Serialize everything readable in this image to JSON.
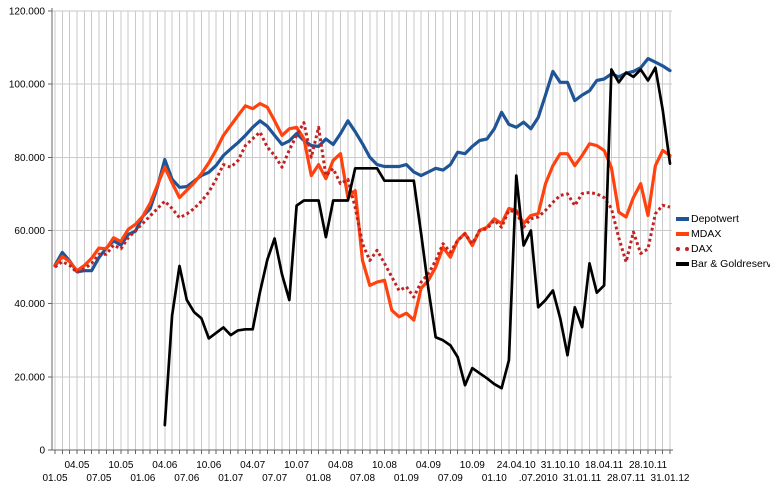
{
  "window": {
    "background": "#ffffff"
  },
  "legend": {
    "position": "right",
    "items": [
      "Depotwert",
      "MDAX",
      "DAX",
      "Bar & Goldreserven"
    ]
  },
  "chart_data": {
    "type": "line",
    "title": "",
    "xlabel": "",
    "ylabel": "",
    "x_unit": "month",
    "x_start": "01.05",
    "x_end": "31.01.12",
    "n_points": 85,
    "ylim": [
      0,
      120000
    ],
    "grid": true,
    "grid_color": "#c9c9c9",
    "axis_color": "#666666",
    "y_ticks": [
      {
        "value": 0,
        "label": "0"
      },
      {
        "value": 20000,
        "label": "20.000"
      },
      {
        "value": 40000,
        "label": "40.000"
      },
      {
        "value": 60000,
        "label": "60.000"
      },
      {
        "value": 80000,
        "label": "80.000"
      },
      {
        "value": 100000,
        "label": "100.000"
      },
      {
        "value": 120000,
        "label": "120.000"
      }
    ],
    "x_ticks_upper": [
      {
        "m": 3,
        "label": "04.05"
      },
      {
        "m": 9,
        "label": "10.05"
      },
      {
        "m": 15,
        "label": "04.06"
      },
      {
        "m": 21,
        "label": "10.06"
      },
      {
        "m": 27,
        "label": "04.07"
      },
      {
        "m": 33,
        "label": "10.07"
      },
      {
        "m": 39,
        "label": "04.08"
      },
      {
        "m": 45,
        "label": "10.08"
      },
      {
        "m": 51,
        "label": "04.09"
      },
      {
        "m": 57,
        "label": "10.09"
      },
      {
        "m": 63,
        "label": "24.04.10"
      },
      {
        "m": 69,
        "label": "31.10.10"
      },
      {
        "m": 75,
        "label": "18.04.11"
      },
      {
        "m": 81,
        "label": "28.10.11"
      }
    ],
    "x_ticks_lower": [
      {
        "m": 0,
        "label": "01.05"
      },
      {
        "m": 6,
        "label": "07.05"
      },
      {
        "m": 12,
        "label": "01.06"
      },
      {
        "m": 18,
        "label": "07.06"
      },
      {
        "m": 24,
        "label": "01.07"
      },
      {
        "m": 30,
        "label": "07.07"
      },
      {
        "m": 36,
        "label": "01.08"
      },
      {
        "m": 42,
        "label": "07.08"
      },
      {
        "m": 48,
        "label": "01.09"
      },
      {
        "m": 54,
        "label": "07.09"
      },
      {
        "m": 60,
        "label": "01.10"
      },
      {
        "m": 66,
        "label": ".07.2010"
      },
      {
        "m": 72,
        "label": "31.01.11"
      },
      {
        "m": 78,
        "label": "28.07.11"
      },
      {
        "m": 84,
        "label": "31.01.12"
      }
    ],
    "series": [
      {
        "name": "Depotwert",
        "color": "#1F5596",
        "dash": "solid",
        "width": 3.2,
        "values": [
          50500,
          54000,
          51700,
          48700,
          49000,
          49000,
          52600,
          55200,
          57200,
          56000,
          58900,
          59800,
          63900,
          66000,
          72000,
          79400,
          74000,
          71800,
          72000,
          73500,
          75000,
          75900,
          77800,
          80500,
          82300,
          84000,
          86000,
          88200,
          90000,
          88500,
          86000,
          83500,
          84500,
          86500,
          84600,
          83200,
          83000,
          85000,
          83500,
          86500,
          90000,
          87000,
          83700,
          80000,
          78000,
          77500,
          77500,
          77500,
          78000,
          76000,
          75000,
          76000,
          77000,
          76500,
          78000,
          81400,
          81000,
          83000,
          84600,
          85000,
          87800,
          92300,
          89000,
          88200,
          89600,
          87800,
          90900,
          97000,
          103500,
          100500,
          100500,
          95500,
          97000,
          98200,
          101000,
          101400,
          102800,
          102000,
          103000,
          103500,
          104500,
          107000,
          106000,
          105000,
          103700
        ]
      },
      {
        "name": "MDAX",
        "color": "#FF420E",
        "dash": "solid",
        "width": 3.2,
        "values": [
          50300,
          52900,
          51500,
          49000,
          50400,
          52400,
          55200,
          55000,
          58000,
          57000,
          60300,
          61700,
          63900,
          67500,
          72500,
          77300,
          73000,
          69000,
          71000,
          73000,
          75500,
          78500,
          82000,
          86000,
          88700,
          91400,
          94100,
          93300,
          94700,
          93700,
          90000,
          86000,
          87800,
          88200,
          85100,
          75000,
          78000,
          74200,
          79200,
          81000,
          69000,
          70900,
          51800,
          45000,
          45900,
          46400,
          38200,
          36400,
          37400,
          35500,
          44200,
          46400,
          50000,
          55400,
          52700,
          57300,
          59200,
          55900,
          60000,
          60900,
          63200,
          61900,
          66000,
          65500,
          61900,
          64100,
          64600,
          72800,
          77700,
          81000,
          81000,
          77700,
          80500,
          83700,
          83200,
          81900,
          77200,
          65000,
          63700,
          69000,
          72800,
          64100,
          77700,
          81900,
          80500
        ]
      },
      {
        "name": "DAX",
        "color": "#C32222",
        "dash": "dotted",
        "width": 3,
        "values": [
          50000,
          51500,
          50500,
          48500,
          49500,
          51000,
          53500,
          53500,
          56000,
          55000,
          58000,
          60000,
          62000,
          64000,
          66000,
          68000,
          66000,
          63500,
          64500,
          66000,
          68000,
          70500,
          74000,
          78000,
          77300,
          79100,
          83200,
          85100,
          86900,
          82800,
          80500,
          77300,
          82000,
          86000,
          89500,
          80000,
          88200,
          75000,
          76900,
          72800,
          74000,
          66300,
          56400,
          51800,
          54600,
          51000,
          47300,
          43600,
          44600,
          41800,
          45900,
          48200,
          51800,
          56400,
          54100,
          57300,
          59100,
          56400,
          60000,
          60500,
          62800,
          60900,
          65500,
          65000,
          60900,
          63200,
          63700,
          65500,
          67700,
          69600,
          70000,
          66800,
          70100,
          70400,
          70000,
          69000,
          66000,
          58000,
          51400,
          59600,
          53700,
          55000,
          64600,
          66900,
          66400
        ]
      },
      {
        "name": "Bar & Goldreserven",
        "color": "#000000",
        "dash": "solid",
        "width": 2.7,
        "values": [
          null,
          null,
          null,
          null,
          null,
          null,
          null,
          null,
          null,
          null,
          null,
          null,
          null,
          null,
          null,
          6800,
          36800,
          50300,
          41000,
          37700,
          36000,
          30500,
          32000,
          33500,
          31400,
          32700,
          33000,
          33000,
          43200,
          52000,
          57800,
          48000,
          41000,
          66800,
          68200,
          68200,
          68200,
          58200,
          68200,
          68200,
          68200,
          77000,
          77000,
          77000,
          77000,
          73600,
          73600,
          73600,
          73600,
          73600,
          59200,
          44000,
          30800,
          30000,
          28600,
          25400,
          17700,
          22400,
          21000,
          19600,
          18000,
          16900,
          24500,
          75000,
          55900,
          60000,
          39000,
          41000,
          43600,
          36000,
          25900,
          39000,
          33600,
          51000,
          43000,
          45000,
          104000,
          100500,
          103200,
          102000,
          104000,
          101000,
          104500,
          93000,
          78300
        ]
      }
    ]
  }
}
